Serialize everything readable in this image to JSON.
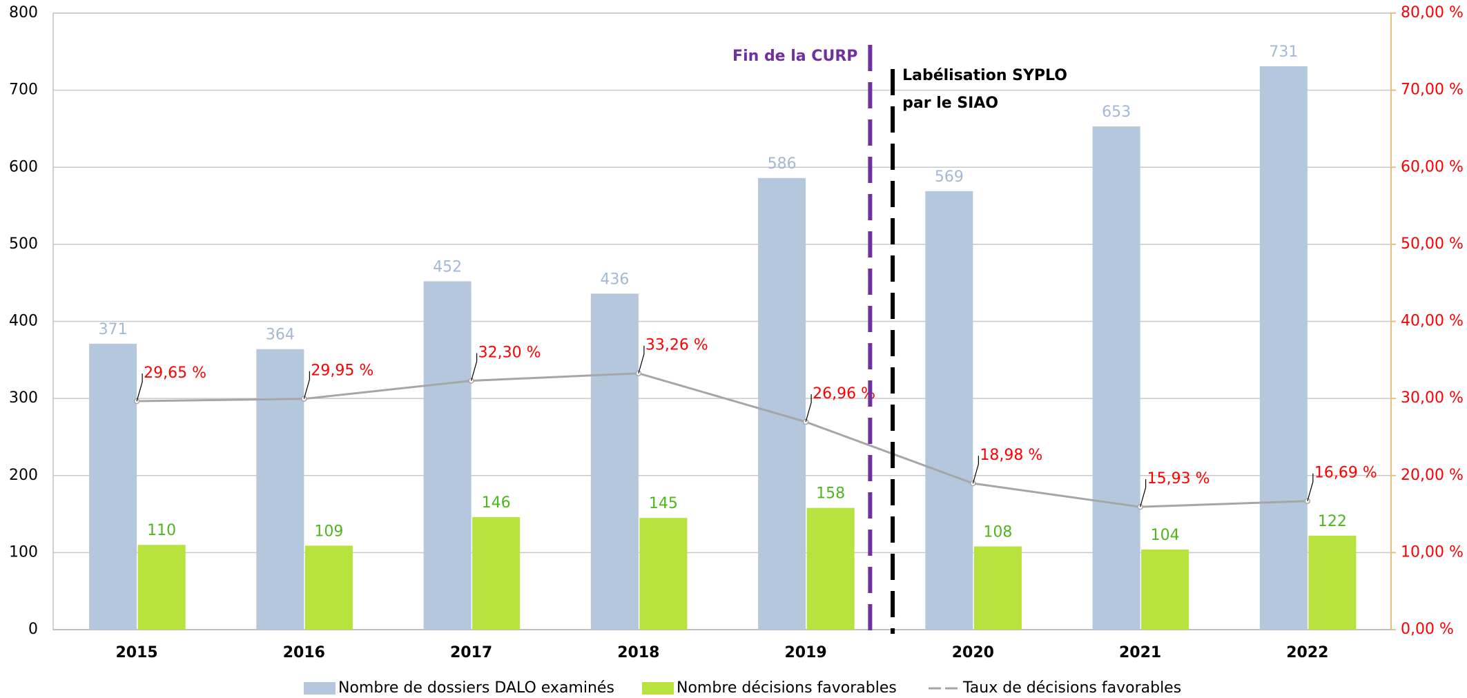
{
  "chart_data": {
    "type": "bar",
    "categories": [
      "2015",
      "2016",
      "2017",
      "2018",
      "2019",
      "2020",
      "2021",
      "2022"
    ],
    "series": [
      {
        "name": "Nombre de dossiers DALO examinés",
        "type": "bar",
        "color": "#b4c7dc",
        "label_color": "#a3b9d3",
        "values": [
          371,
          364,
          452,
          436,
          586,
          569,
          653,
          731
        ]
      },
      {
        "name": "Nombre décisions favorables",
        "type": "bar",
        "color": "#b8e23e",
        "label_color": "#4fb51c",
        "values": [
          110,
          109,
          146,
          145,
          158,
          108,
          104,
          122
        ]
      },
      {
        "name": "Taux de décisions favorables",
        "type": "line",
        "axis": "y2",
        "color": "#a6a6a6",
        "label_color": "#ff0000",
        "values": [
          29.65,
          29.95,
          32.3,
          33.26,
          26.96,
          18.98,
          15.93,
          16.69
        ],
        "value_labels": [
          "29,65 %",
          "29,95 %",
          "32,30 %",
          "33,26 %",
          "26,96 %",
          "18,98 %",
          "15,93 %",
          "16,69 %"
        ]
      }
    ],
    "ylim": [
      0,
      800
    ],
    "yticks": [
      0,
      100,
      200,
      300,
      400,
      500,
      600,
      700,
      800
    ],
    "y2lim": [
      0,
      80
    ],
    "y2ticks": [
      {
        "value": 0,
        "label": "0,00 %"
      },
      {
        "value": 10,
        "label": "10,00 %"
      },
      {
        "value": 20,
        "label": "20,00 %"
      },
      {
        "value": 30,
        "label": "30,00 %"
      },
      {
        "value": 40,
        "label": "40,00 %"
      },
      {
        "value": 50,
        "label": "50,00 %"
      },
      {
        "value": 60,
        "label": "60,00 %"
      },
      {
        "value": 70,
        "label": "70,00 %"
      },
      {
        "value": 80,
        "label": "80,00 %"
      }
    ],
    "grid": true,
    "legend": "bottom",
    "annotations": [
      {
        "lines": [
          "Fin de la CURP"
        ],
        "color": "#7030a0"
      },
      {
        "lines": [
          "Labélisation SYPLO",
          "par le SIAO"
        ],
        "color": "#000000"
      }
    ]
  }
}
